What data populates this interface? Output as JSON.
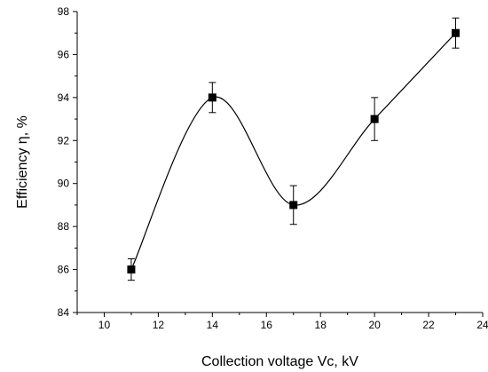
{
  "chart_data": {
    "type": "scatter",
    "title": "",
    "xlabel": "Collection voltage Vc, kV",
    "ylabel": "Efficiency η, %",
    "xlim": [
      9,
      24
    ],
    "ylim": [
      84,
      98
    ],
    "x_ticks": [
      10,
      12,
      14,
      16,
      18,
      20,
      22,
      24
    ],
    "y_ticks": [
      84,
      86,
      88,
      90,
      92,
      94,
      96,
      98
    ],
    "grid": false,
    "legend": "none",
    "marker": "filled-square",
    "line": "smooth-spline",
    "color": "#000000",
    "series": [
      {
        "x": [
          11,
          14,
          17,
          20,
          23
        ],
        "y": [
          86,
          94,
          89,
          93,
          97
        ],
        "error_minus": [
          0.5,
          0.7,
          0.9,
          1.0,
          0.7
        ],
        "error_plus": [
          0.5,
          0.7,
          0.9,
          1.0,
          0.7
        ]
      }
    ]
  }
}
